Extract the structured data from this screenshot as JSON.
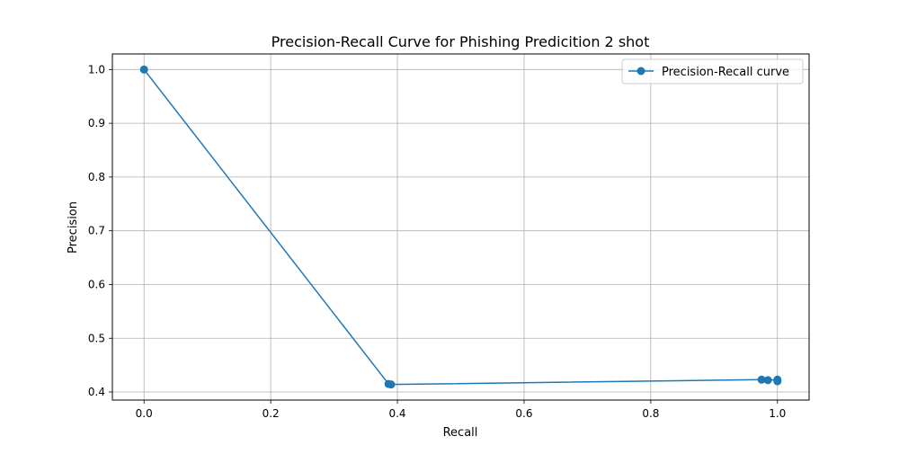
{
  "chart_data": {
    "type": "line",
    "title": "Precision-Recall Curve for Phishing Predicition 2 shot",
    "xlabel": "Recall",
    "ylabel": "Precision",
    "xlim": [
      -0.05,
      1.05
    ],
    "ylim": [
      0.385,
      1.029
    ],
    "grid": true,
    "legend_position": "top-right",
    "x_ticks": [
      0.0,
      0.2,
      0.4,
      0.6,
      0.8,
      1.0
    ],
    "x_tick_labels": [
      "0.0",
      "0.2",
      "0.4",
      "0.6",
      "0.8",
      "1.0"
    ],
    "y_ticks": [
      0.4,
      0.5,
      0.6,
      0.7,
      0.8,
      0.9,
      1.0
    ],
    "y_tick_labels": [
      "0.4",
      "0.5",
      "0.6",
      "0.7",
      "0.8",
      "0.9",
      "1.0"
    ],
    "series": [
      {
        "name": "Precision-Recall curve",
        "color": "#1f77b4",
        "marker": "circle",
        "points": [
          {
            "x": 0.0,
            "y": 1.0
          },
          {
            "x": 0.386,
            "y": 0.415
          },
          {
            "x": 0.39,
            "y": 0.414
          },
          {
            "x": 0.975,
            "y": 0.423
          },
          {
            "x": 0.985,
            "y": 0.422
          },
          {
            "x": 1.0,
            "y": 0.423
          },
          {
            "x": 1.0,
            "y": 0.42
          }
        ]
      }
    ]
  }
}
